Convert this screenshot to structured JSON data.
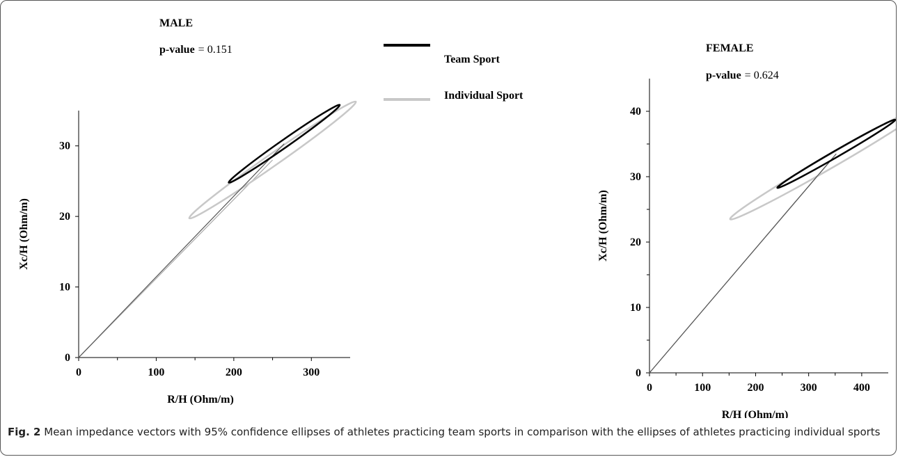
{
  "chart_data": [
    {
      "type": "vector",
      "title": "MALE",
      "annotation": {
        "label": "p-value",
        "text": "= 0.151"
      },
      "xlabel": "R/H (Ohm/m)",
      "ylabel": "Xc/H (Ohm/m)",
      "xlim": [
        0,
        350
      ],
      "xticks": [
        0,
        100,
        200,
        300
      ],
      "xminor": [
        50,
        150,
        250
      ],
      "ylim": [
        0,
        35
      ],
      "yticks": [
        0,
        10,
        20,
        30
      ],
      "yminor": [],
      "series": [
        {
          "name": "Team Sport",
          "color": "#000000",
          "x": [
            265
          ],
          "values": [
            30.3
          ],
          "x_radius": [
            9
          ],
          "y_radius": [
            1.2
          ],
          "angle": [
            -55
          ]
        },
        {
          "name": "Individual Sport",
          "color": "#c8c8c8",
          "x": [
            250
          ],
          "values": [
            28
          ],
          "x_radius": [
            14
          ],
          "y_radius": [
            1.8
          ],
          "angle": [
            -55
          ]
        }
      ]
    },
    {
      "type": "vector",
      "title": "FEMALE",
      "annotation": {
        "label": "p-value",
        "text": "= 0.624"
      },
      "xlabel": "R/H (Ohm/m)",
      "ylabel": "Xc/H (Ohm/m)",
      "xlim": [
        0,
        450
      ],
      "xticks": [
        0,
        100,
        200,
        300,
        400
      ],
      "xminor": [
        50,
        150,
        250,
        350
      ],
      "ylim": [
        0,
        45
      ],
      "yticks": [
        0,
        10,
        20,
        30,
        40
      ],
      "yminor": [
        5,
        15,
        25,
        35
      ],
      "series": [
        {
          "name": "Team Sport",
          "color": "#000000",
          "x": [
            352
          ],
          "values": [
            33.5
          ],
          "x_radius": [
            11
          ],
          "y_radius": [
            1.3
          ],
          "angle": [
            -60
          ]
        },
        {
          "name": "Individual Sport",
          "color": "#c8c8c8",
          "x": [
            340
          ],
          "values": [
            32.3
          ],
          "x_radius": [
            22
          ],
          "y_radius": [
            2.2
          ],
          "angle": [
            -60
          ]
        }
      ]
    }
  ],
  "caption": {
    "label": "Fig. 2",
    "text": "Mean impedance vectors with 95% confidence ellipses of athletes practicing team sports in comparison with the ellipses of athletes practicing individual sports"
  }
}
